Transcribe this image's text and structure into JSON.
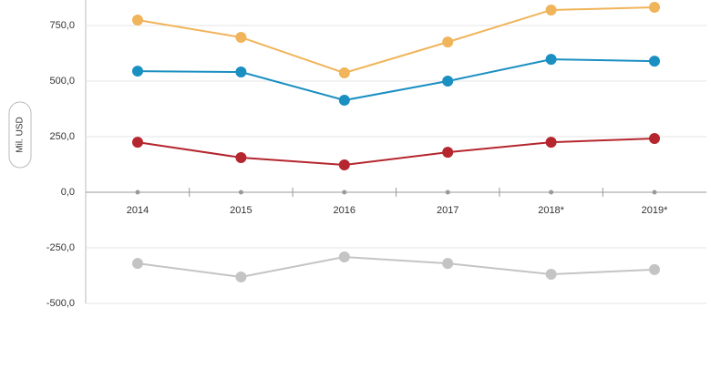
{
  "chart_data": {
    "type": "line",
    "y_label": "Mil. USD",
    "categories": [
      "2014",
      "2015",
      "2016",
      "2017",
      "2018*",
      "2019*"
    ],
    "series": [
      {
        "color": "#f0b45a",
        "values": [
          775,
          697,
          537,
          676,
          820,
          832
        ]
      },
      {
        "color": "#1a8fc1",
        "values": [
          545,
          541,
          414,
          500,
          598,
          590
        ]
      },
      {
        "color": "#b5262e",
        "values": [
          225,
          156,
          123,
          180,
          225,
          242
        ]
      },
      {
        "color": "#c4c4c4",
        "values": [
          -320,
          -381,
          -291,
          -320,
          -369,
          -348
        ]
      }
    ],
    "ylim": [
      -500,
      865
    ],
    "yticks": [
      {
        "value": -500,
        "label": "-500,0"
      },
      {
        "value": -250,
        "label": "-250,0"
      },
      {
        "value": 0,
        "label": "0,0"
      },
      {
        "value": 250,
        "label": "250,0"
      },
      {
        "value": 500,
        "label": "500,0"
      },
      {
        "value": 750,
        "label": "750,0"
      }
    ],
    "grid": true
  }
}
